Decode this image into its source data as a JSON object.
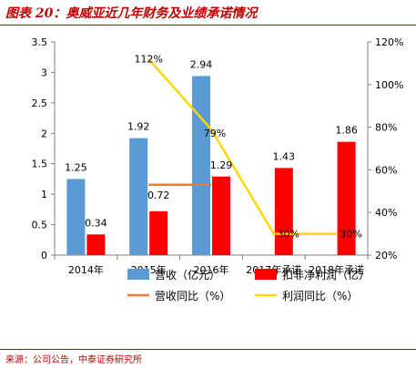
{
  "figure": {
    "title": "图表 20：奥威亚近几年财务及业绩承诺情况",
    "source": "来源：公司公告，中泰证券研究所"
  },
  "chart_data": {
    "type": "bar",
    "categories": [
      "2014年",
      "2015年",
      "2016年",
      "2017年承诺",
      "2018年承诺"
    ],
    "y_left": {
      "ticks": [
        "0",
        "0.5",
        "1",
        "1.5",
        "2",
        "2.5",
        "3",
        "3.5"
      ],
      "range": [
        0,
        3.5
      ]
    },
    "y_right": {
      "ticks": [
        "20%",
        "40%",
        "60%",
        "80%",
        "100%",
        "120%"
      ],
      "range": [
        20,
        120
      ],
      "unit": "%"
    },
    "bar_series": [
      {
        "name": "营收（亿元）",
        "color": "#5b9bd5",
        "values": [
          1.25,
          1.92,
          2.94,
          null,
          null
        ],
        "labels": [
          "1.25",
          "1.92",
          "2.94",
          "",
          ""
        ]
      },
      {
        "name": "扣非净利润（亿）",
        "color": "#ff0000",
        "values": [
          0.34,
          0.72,
          1.29,
          1.43,
          1.86
        ],
        "labels": [
          "0.34",
          "0.72",
          "1.29",
          "1.43",
          "1.86"
        ]
      }
    ],
    "line_series": [
      {
        "name": "营收同比（%）",
        "color": "#ed7d31",
        "values": [
          null,
          53,
          53,
          null,
          null
        ]
      },
      {
        "name": "利润同比（%）",
        "color": "#ffd700",
        "values": [
          null,
          112,
          79,
          30,
          30
        ],
        "labels": [
          "",
          "112%",
          "79%",
          "30%",
          "30%"
        ]
      }
    ],
    "legend": {
      "placement": "bottom",
      "entries": [
        {
          "name": "营收（亿元）",
          "kind": "bar",
          "color": "#5b9bd5"
        },
        {
          "name": "扣非净利润（亿）",
          "kind": "bar",
          "color": "#ff0000"
        },
        {
          "name": "营收同比（%）",
          "kind": "line",
          "color": "#ed7d31"
        },
        {
          "name": "利润同比（%）",
          "kind": "line",
          "color": "#ffd700"
        }
      ]
    },
    "grid": false
  }
}
